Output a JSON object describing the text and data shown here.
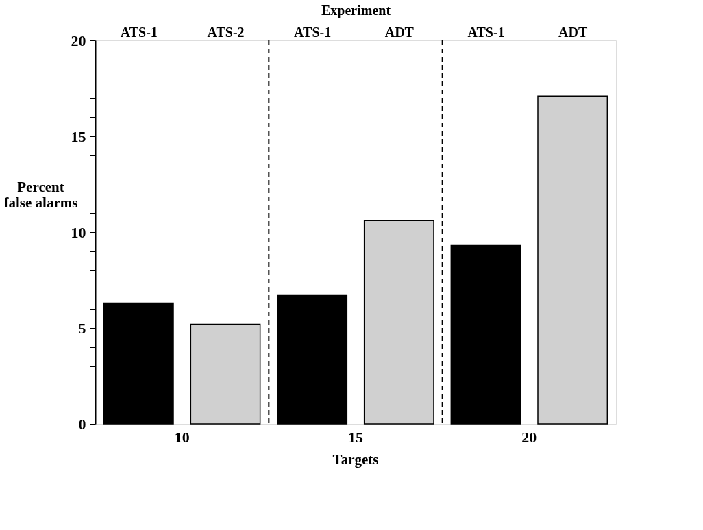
{
  "chart_data": {
    "type": "bar",
    "categories": [
      "ATS-1",
      "ATS-2",
      "ATS-1",
      "ADT",
      "ATS-1",
      "ADT"
    ],
    "values": [
      6.3,
      5.2,
      6.7,
      10.6,
      9.3,
      17.1
    ],
    "colors": [
      "#000000",
      "#d0d0d0",
      "#000000",
      "#d0d0d0",
      "#000000",
      "#d0d0d0"
    ],
    "ylim": [
      0,
      20
    ],
    "yticks": [
      0,
      {
        "value": 1,
        "label": null
      },
      {
        "value": 2,
        "label": null
      },
      {
        "value": 3,
        "label": null
      },
      {
        "value": 4,
        "label": null
      },
      5,
      {
        "value": 6,
        "label": null
      },
      {
        "value": 7,
        "label": null
      },
      {
        "value": 8,
        "label": null
      },
      {
        "value": 9,
        "label": null
      },
      10,
      {
        "value": 11,
        "label": null
      },
      {
        "value": 12,
        "label": null
      },
      {
        "value": 13,
        "label": null
      },
      {
        "value": 14,
        "label": null
      },
      15,
      {
        "value": 16,
        "label": null
      },
      {
        "value": 17,
        "label": null
      },
      {
        "value": 18,
        "label": null
      },
      {
        "value": 19,
        "label": null
      },
      20
    ],
    "ylabel": "Percent false alarms",
    "xlabel": "Targets",
    "x2label": "Experiment",
    "annotations": [
      "10",
      "15",
      "20"
    ],
    "grid": false
  }
}
